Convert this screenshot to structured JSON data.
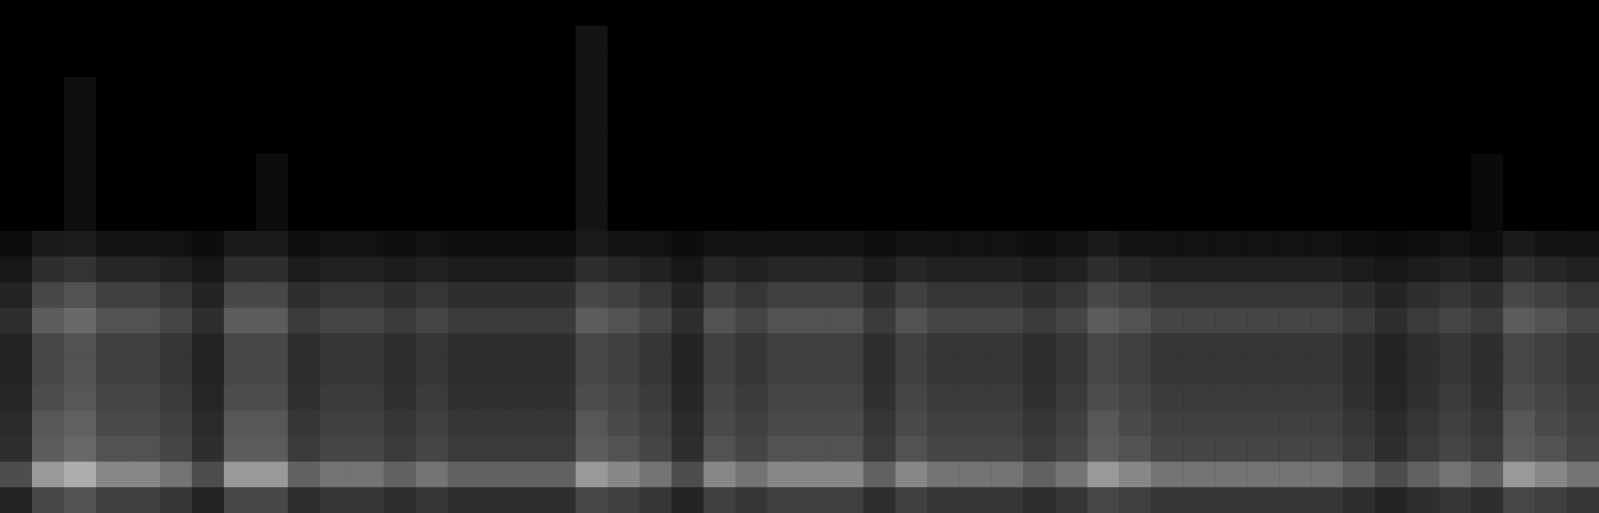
{
  "chart_data": {
    "type": "heatmap",
    "tick_labels": false,
    "zlim": [
      0,
      100
    ],
    "z": [
      [
        0,
        0,
        0,
        0,
        0,
        0,
        0,
        0,
        0,
        0,
        0,
        0,
        0,
        0,
        0,
        0,
        0,
        0,
        0,
        0,
        0,
        0,
        0,
        0,
        0,
        0,
        0,
        0,
        0,
        0,
        0,
        0,
        0,
        0,
        0,
        0,
        0,
        0,
        0,
        0,
        0,
        0,
        0,
        0,
        0,
        0,
        0,
        0,
        0,
        0
      ],
      [
        0,
        0,
        0,
        0,
        0,
        0,
        0,
        0,
        0,
        0,
        0,
        0,
        0,
        0,
        0,
        0,
        0,
        0,
        8,
        0,
        0,
        0,
        0,
        0,
        0,
        0,
        0,
        0,
        0,
        0,
        0,
        0,
        0,
        0,
        0,
        0,
        0,
        0,
        0,
        0,
        0,
        0,
        0,
        0,
        0,
        0,
        0,
        0,
        0,
        0
      ],
      [
        0,
        0,
        0,
        0,
        0,
        0,
        0,
        0,
        0,
        0,
        0,
        0,
        0,
        0,
        0,
        0,
        0,
        0,
        8,
        0,
        0,
        0,
        0,
        0,
        0,
        0,
        0,
        0,
        0,
        0,
        0,
        0,
        0,
        0,
        0,
        0,
        0,
        0,
        0,
        0,
        0,
        0,
        0,
        0,
        0,
        0,
        0,
        0,
        0,
        0
      ],
      [
        0,
        0,
        6,
        0,
        0,
        0,
        0,
        0,
        0,
        0,
        0,
        0,
        0,
        0,
        0,
        0,
        0,
        0,
        8,
        0,
        0,
        0,
        0,
        0,
        0,
        0,
        0,
        0,
        0,
        0,
        0,
        0,
        0,
        0,
        0,
        0,
        0,
        0,
        0,
        0,
        0,
        0,
        0,
        0,
        0,
        0,
        0,
        0,
        0,
        0
      ],
      [
        0,
        0,
        6,
        0,
        0,
        0,
        0,
        0,
        0,
        0,
        0,
        0,
        0,
        0,
        0,
        0,
        0,
        0,
        8,
        0,
        0,
        0,
        0,
        0,
        0,
        0,
        0,
        0,
        0,
        0,
        0,
        0,
        0,
        0,
        0,
        0,
        0,
        0,
        0,
        0,
        0,
        0,
        0,
        0,
        0,
        0,
        0,
        0,
        0,
        0
      ],
      [
        0,
        0,
        6,
        0,
        0,
        0,
        0,
        0,
        0,
        0,
        0,
        0,
        0,
        0,
        0,
        0,
        0,
        0,
        8,
        0,
        0,
        0,
        0,
        0,
        0,
        0,
        0,
        0,
        0,
        0,
        0,
        0,
        0,
        0,
        0,
        0,
        0,
        0,
        0,
        0,
        0,
        0,
        0,
        0,
        0,
        0,
        0,
        0,
        0,
        0
      ],
      [
        0,
        0,
        6,
        0,
        0,
        0,
        0,
        0,
        5,
        0,
        0,
        0,
        0,
        0,
        0,
        0,
        0,
        0,
        8,
        0,
        0,
        0,
        0,
        0,
        0,
        0,
        0,
        0,
        0,
        0,
        0,
        0,
        0,
        0,
        0,
        0,
        0,
        0,
        0,
        0,
        0,
        0,
        0,
        0,
        0,
        0,
        4,
        0,
        0,
        0
      ],
      [
        0,
        0,
        6,
        0,
        0,
        0,
        0,
        0,
        5,
        0,
        0,
        0,
        0,
        0,
        0,
        0,
        0,
        0,
        8,
        0,
        0,
        0,
        0,
        0,
        0,
        0,
        0,
        0,
        0,
        0,
        0,
        0,
        0,
        0,
        0,
        0,
        0,
        0,
        0,
        0,
        0,
        0,
        0,
        0,
        0,
        0,
        4,
        0,
        0,
        0
      ],
      [
        0,
        0,
        6,
        0,
        0,
        0,
        0,
        0,
        5,
        0,
        0,
        0,
        0,
        0,
        0,
        0,
        0,
        0,
        8,
        0,
        0,
        0,
        0,
        0,
        0,
        0,
        0,
        0,
        0,
        0,
        0,
        0,
        0,
        0,
        0,
        0,
        0,
        0,
        0,
        0,
        0,
        0,
        0,
        0,
        0,
        0,
        4,
        0,
        0,
        0
      ],
      [
        5,
        10,
        11,
        8,
        8,
        7,
        5,
        10,
        10,
        6,
        7,
        7,
        6,
        7,
        6,
        6,
        6,
        6,
        10,
        8,
        7,
        5,
        8,
        7,
        8,
        8,
        8,
        6,
        8,
        7,
        7,
        7,
        6,
        7,
        10,
        8,
        7,
        7,
        7,
        7,
        7,
        7,
        6,
        5,
        6,
        7,
        6,
        10,
        8,
        7
      ],
      [
        9,
        18,
        20,
        15,
        15,
        13,
        9,
        18,
        18,
        11,
        13,
        13,
        11,
        13,
        11,
        11,
        11,
        11,
        18,
        15,
        13,
        9,
        15,
        13,
        15,
        15,
        15,
        11,
        15,
        13,
        13,
        13,
        11,
        13,
        18,
        15,
        13,
        13,
        13,
        13,
        13,
        13,
        11,
        9,
        11,
        13,
        11,
        18,
        15,
        13
      ],
      [
        14,
        28,
        32,
        25,
        25,
        21,
        14,
        28,
        28,
        18,
        21,
        21,
        18,
        21,
        18,
        18,
        18,
        18,
        28,
        25,
        21,
        14,
        25,
        21,
        25,
        25,
        25,
        18,
        25,
        21,
        21,
        21,
        18,
        21,
        28,
        25,
        21,
        21,
        21,
        21,
        21,
        21,
        18,
        14,
        18,
        21,
        18,
        28,
        25,
        21
      ],
      [
        18,
        36,
        41,
        32,
        32,
        27,
        18,
        36,
        36,
        23,
        27,
        27,
        23,
        27,
        23,
        23,
        23,
        23,
        36,
        32,
        27,
        18,
        32,
        27,
        32,
        32,
        32,
        23,
        32,
        27,
        27,
        27,
        23,
        27,
        36,
        32,
        27,
        27,
        27,
        27,
        27,
        27,
        23,
        18,
        23,
        27,
        23,
        36,
        32,
        27
      ],
      [
        14,
        28,
        32,
        25,
        25,
        21,
        14,
        28,
        28,
        18,
        21,
        21,
        18,
        21,
        18,
        18,
        18,
        18,
        28,
        25,
        21,
        14,
        25,
        21,
        25,
        25,
        25,
        18,
        25,
        21,
        21,
        21,
        18,
        21,
        28,
        25,
        21,
        21,
        21,
        21,
        21,
        21,
        18,
        14,
        18,
        21,
        18,
        28,
        25,
        21
      ],
      [
        14,
        28,
        32,
        25,
        25,
        21,
        14,
        28,
        28,
        18,
        21,
        21,
        18,
        21,
        18,
        18,
        18,
        18,
        28,
        25,
        21,
        14,
        25,
        21,
        25,
        25,
        25,
        18,
        25,
        21,
        21,
        21,
        18,
        21,
        28,
        25,
        21,
        21,
        21,
        21,
        21,
        21,
        18,
        14,
        18,
        21,
        18,
        28,
        25,
        21
      ],
      [
        15,
        30,
        34,
        27,
        27,
        23,
        15,
        30,
        30,
        19,
        23,
        23,
        19,
        23,
        19,
        19,
        19,
        19,
        30,
        27,
        23,
        15,
        27,
        23,
        27,
        27,
        27,
        19,
        27,
        23,
        23,
        23,
        19,
        23,
        30,
        27,
        23,
        23,
        23,
        23,
        23,
        23,
        19,
        15,
        19,
        23,
        19,
        30,
        27,
        23
      ],
      [
        17,
        34,
        38,
        29,
        29,
        25,
        17,
        34,
        34,
        21,
        25,
        25,
        21,
        25,
        21,
        21,
        21,
        21,
        34,
        29,
        25,
        17,
        29,
        25,
        29,
        29,
        29,
        21,
        29,
        25,
        25,
        25,
        21,
        25,
        34,
        29,
        25,
        25,
        25,
        25,
        25,
        25,
        21,
        17,
        21,
        25,
        21,
        34,
        29,
        25
      ],
      [
        18,
        36,
        41,
        32,
        32,
        27,
        18,
        36,
        36,
        23,
        27,
        27,
        23,
        27,
        23,
        23,
        23,
        23,
        36,
        32,
        27,
        18,
        32,
        27,
        32,
        32,
        32,
        23,
        32,
        27,
        27,
        27,
        23,
        27,
        36,
        32,
        27,
        27,
        27,
        27,
        27,
        27,
        23,
        18,
        23,
        27,
        23,
        36,
        32,
        27
      ],
      [
        30,
        60,
        68,
        53,
        53,
        45,
        30,
        60,
        60,
        38,
        45,
        45,
        38,
        45,
        38,
        38,
        38,
        38,
        60,
        53,
        45,
        30,
        53,
        45,
        53,
        53,
        53,
        38,
        53,
        45,
        45,
        45,
        38,
        45,
        60,
        53,
        45,
        45,
        45,
        45,
        45,
        45,
        38,
        30,
        38,
        45,
        38,
        60,
        53,
        45
      ],
      [
        14,
        28,
        32,
        25,
        25,
        21,
        14,
        28,
        28,
        18,
        21,
        21,
        18,
        21,
        18,
        18,
        18,
        18,
        28,
        25,
        21,
        14,
        25,
        21,
        25,
        25,
        25,
        18,
        25,
        21,
        21,
        21,
        18,
        21,
        28,
        25,
        21,
        21,
        21,
        21,
        21,
        21,
        18,
        14,
        18,
        21,
        18,
        28,
        25,
        21
      ]
    ]
  }
}
